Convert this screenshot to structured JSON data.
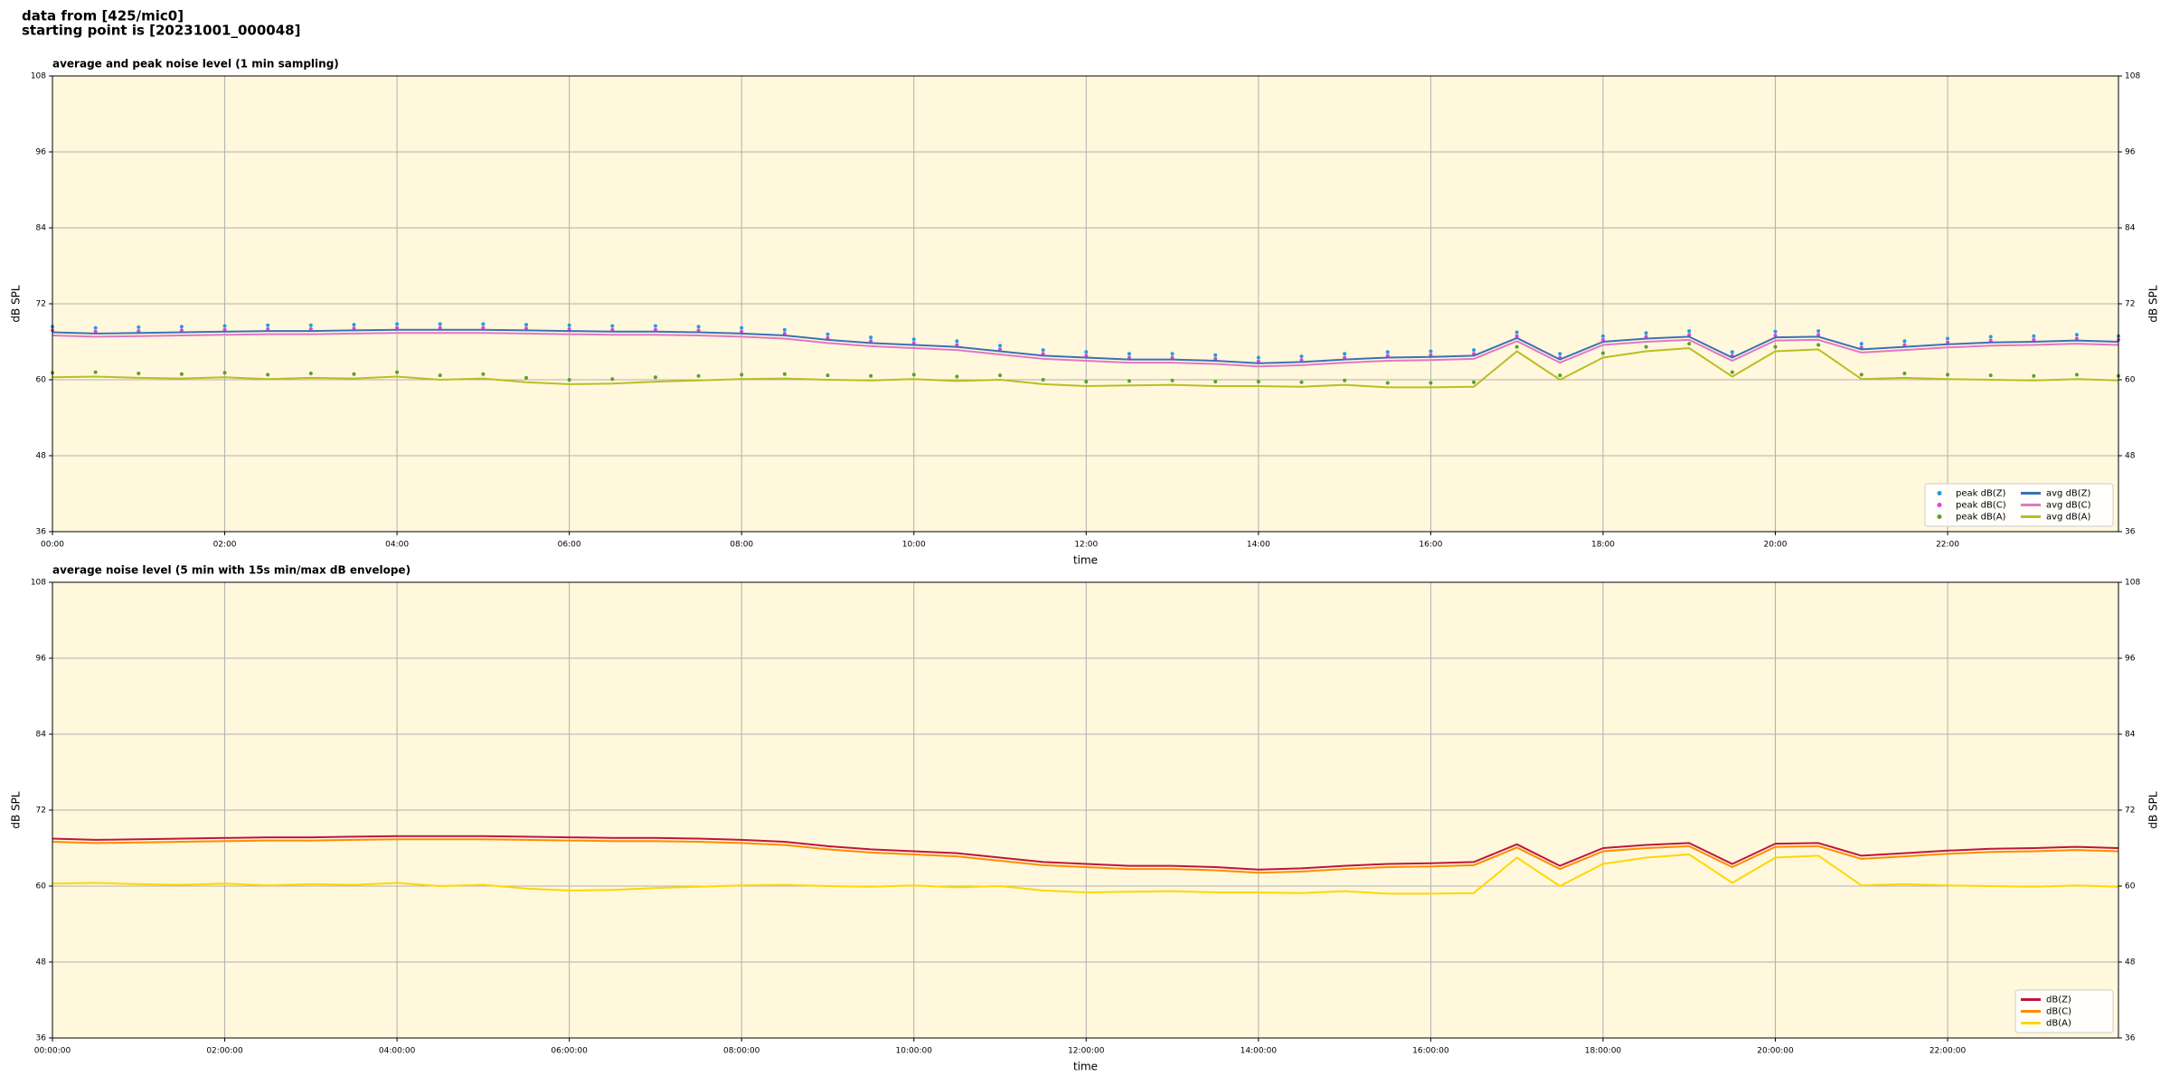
{
  "header": [
    "data from [425/mic0]",
    "starting point is [20231001_000048]"
  ],
  "chart_data": [
    {
      "type": "line",
      "title": "average and peak noise level (1 min sampling)",
      "xlabel": "time",
      "ylabel": "dB SPL",
      "x": [
        "00:00",
        "00:30",
        "01:00",
        "01:30",
        "02:00",
        "02:30",
        "03:00",
        "03:30",
        "04:00",
        "04:30",
        "05:00",
        "05:30",
        "06:00",
        "06:30",
        "07:00",
        "07:30",
        "08:00",
        "08:30",
        "09:00",
        "09:30",
        "10:00",
        "10:30",
        "11:00",
        "11:30",
        "12:00",
        "12:30",
        "13:00",
        "13:30",
        "14:00",
        "14:30",
        "15:00",
        "15:30",
        "16:00",
        "16:30",
        "17:00",
        "17:30",
        "18:00",
        "18:30",
        "19:00",
        "19:30",
        "20:00",
        "20:30",
        "21:00",
        "21:30",
        "22:00",
        "22:30",
        "23:00",
        "23:30",
        "23:59"
      ],
      "xlim": [
        "00:00",
        "23:59"
      ],
      "xticks": [
        "00:00",
        "02:00",
        "04:00",
        "06:00",
        "08:00",
        "10:00",
        "12:00",
        "14:00",
        "16:00",
        "18:00",
        "20:00",
        "22:00"
      ],
      "ylim": [
        36,
        108
      ],
      "yticks": [
        36,
        48,
        60,
        72,
        84,
        96,
        108
      ],
      "grid": true,
      "legend": "lower right",
      "series": [
        {
          "name": "peak dB(Z)",
          "mode": "markers",
          "color": "#1f9fdf",
          "values": [
            68.4,
            68.2,
            68.3,
            68.4,
            68.5,
            68.6,
            68.6,
            68.7,
            68.8,
            68.8,
            68.8,
            68.7,
            68.6,
            68.5,
            68.5,
            68.4,
            68.2,
            67.9,
            67.2,
            66.7,
            66.4,
            66.1,
            65.4,
            64.7,
            64.4,
            64.1,
            64.1,
            63.9,
            63.5,
            63.7,
            64.1,
            64.4,
            64.5,
            64.7,
            67.5,
            64.1,
            66.9,
            67.4,
            67.7,
            64.4,
            67.6,
            67.7,
            65.7,
            66.1,
            66.5,
            66.8,
            66.9,
            67.1,
            66.9
          ]
        },
        {
          "name": "peak dB(C)",
          "mode": "markers",
          "color": "#e040e0",
          "values": [
            67.8,
            67.6,
            67.7,
            67.8,
            67.9,
            68.0,
            68.0,
            68.1,
            68.2,
            68.2,
            68.2,
            68.1,
            68.0,
            67.9,
            67.9,
            67.8,
            67.6,
            67.3,
            66.6,
            66.1,
            65.8,
            65.5,
            64.8,
            64.1,
            63.8,
            63.5,
            63.5,
            63.3,
            62.9,
            63.1,
            63.5,
            63.8,
            63.9,
            64.1,
            66.9,
            63.5,
            66.3,
            66.8,
            67.1,
            63.8,
            67.0,
            67.1,
            65.1,
            65.5,
            65.9,
            66.2,
            66.3,
            66.5,
            66.3
          ]
        },
        {
          "name": "peak dB(A)",
          "mode": "markers",
          "color": "#5aa02c",
          "values": [
            61.1,
            61.2,
            61.0,
            60.9,
            61.1,
            60.8,
            61.0,
            60.9,
            61.2,
            60.7,
            60.9,
            60.3,
            60.0,
            60.1,
            60.4,
            60.6,
            60.8,
            60.9,
            60.7,
            60.6,
            60.8,
            60.5,
            60.7,
            60.0,
            59.7,
            59.8,
            59.9,
            59.7,
            59.7,
            59.6,
            59.9,
            59.5,
            59.5,
            59.6,
            65.2,
            60.7,
            64.2,
            65.2,
            65.7,
            61.2,
            65.2,
            65.5,
            60.8,
            61.0,
            60.8,
            60.7,
            60.6,
            60.8,
            60.6
          ]
        },
        {
          "name": "avg dB(Z)",
          "mode": "lines",
          "color": "#3d6fb8",
          "values": [
            67.5,
            67.3,
            67.4,
            67.5,
            67.6,
            67.7,
            67.7,
            67.8,
            67.9,
            67.9,
            67.9,
            67.8,
            67.7,
            67.6,
            67.6,
            67.5,
            67.3,
            67.0,
            66.3,
            65.8,
            65.5,
            65.2,
            64.5,
            63.8,
            63.5,
            63.2,
            63.2,
            63.0,
            62.6,
            62.8,
            63.2,
            63.5,
            63.6,
            63.8,
            66.6,
            63.2,
            66.0,
            66.5,
            66.8,
            63.5,
            66.7,
            66.8,
            64.8,
            65.2,
            65.6,
            65.9,
            66.0,
            66.2,
            66.0
          ]
        },
        {
          "name": "avg dB(C)",
          "mode": "lines",
          "color": "#e377c2",
          "values": [
            67.0,
            66.8,
            66.9,
            67.0,
            67.1,
            67.2,
            67.2,
            67.3,
            67.4,
            67.4,
            67.4,
            67.3,
            67.2,
            67.1,
            67.1,
            67.0,
            66.8,
            66.5,
            65.8,
            65.3,
            65.0,
            64.7,
            64.0,
            63.3,
            63.0,
            62.7,
            62.7,
            62.5,
            62.1,
            62.3,
            62.7,
            63.0,
            63.1,
            63.3,
            66.1,
            62.7,
            65.5,
            66.0,
            66.3,
            63.0,
            66.2,
            66.3,
            64.3,
            64.7,
            65.1,
            65.4,
            65.5,
            65.7,
            65.5
          ]
        },
        {
          "name": "avg dB(A)",
          "mode": "lines",
          "color": "#bcbd22",
          "values": [
            60.4,
            60.5,
            60.3,
            60.2,
            60.4,
            60.1,
            60.3,
            60.2,
            60.5,
            60.0,
            60.2,
            59.6,
            59.3,
            59.4,
            59.7,
            59.9,
            60.1,
            60.2,
            60.0,
            59.9,
            60.1,
            59.8,
            60.0,
            59.3,
            59.0,
            59.1,
            59.2,
            59.0,
            59.0,
            58.9,
            59.2,
            58.8,
            58.8,
            58.9,
            64.5,
            60.0,
            63.5,
            64.5,
            65.0,
            60.5,
            64.5,
            64.8,
            60.1,
            60.3,
            60.1,
            60.0,
            59.9,
            60.1,
            59.9
          ]
        }
      ]
    },
    {
      "type": "line",
      "title": "average noise level (5 min with 15s min/max dB envelope)",
      "xlabel": "time",
      "ylabel": "dB SPL",
      "x": [
        "00:00:00",
        "00:30:00",
        "01:00:00",
        "01:30:00",
        "02:00:00",
        "02:30:00",
        "03:00:00",
        "03:30:00",
        "04:00:00",
        "04:30:00",
        "05:00:00",
        "05:30:00",
        "06:00:00",
        "06:30:00",
        "07:00:00",
        "07:30:00",
        "08:00:00",
        "08:30:00",
        "09:00:00",
        "09:30:00",
        "10:00:00",
        "10:30:00",
        "11:00:00",
        "11:30:00",
        "12:00:00",
        "12:30:00",
        "13:00:00",
        "13:30:00",
        "14:00:00",
        "14:30:00",
        "15:00:00",
        "15:30:00",
        "16:00:00",
        "16:30:00",
        "17:00:00",
        "17:30:00",
        "18:00:00",
        "18:30:00",
        "19:00:00",
        "19:30:00",
        "20:00:00",
        "20:30:00",
        "21:00:00",
        "21:30:00",
        "22:00:00",
        "22:30:00",
        "23:00:00",
        "23:30:00",
        "23:59:00"
      ],
      "xlim": [
        "00:00:00",
        "23:59:00"
      ],
      "xticks": [
        "00:00:00",
        "02:00:00",
        "04:00:00",
        "06:00:00",
        "08:00:00",
        "10:00:00",
        "12:00:00",
        "14:00:00",
        "16:00:00",
        "18:00:00",
        "20:00:00",
        "22:00:00"
      ],
      "ylim": [
        36,
        108
      ],
      "yticks": [
        36,
        48,
        60,
        72,
        84,
        96,
        108
      ],
      "grid": true,
      "legend": "lower right",
      "series": [
        {
          "name": "dB(Z)",
          "mode": "lines",
          "color": "#c0143c",
          "values": [
            67.5,
            67.3,
            67.4,
            67.5,
            67.6,
            67.7,
            67.7,
            67.8,
            67.9,
            67.9,
            67.9,
            67.8,
            67.7,
            67.6,
            67.6,
            67.5,
            67.3,
            67.0,
            66.3,
            65.8,
            65.5,
            65.2,
            64.5,
            63.8,
            63.5,
            63.2,
            63.2,
            63.0,
            62.6,
            62.8,
            63.2,
            63.5,
            63.6,
            63.8,
            66.6,
            63.2,
            66.0,
            66.5,
            66.8,
            63.5,
            66.7,
            66.8,
            64.8,
            65.2,
            65.6,
            65.9,
            66.0,
            66.2,
            66.0
          ]
        },
        {
          "name": "dB(C)",
          "mode": "lines",
          "color": "#ff8c00",
          "values": [
            67.0,
            66.8,
            66.9,
            67.0,
            67.1,
            67.2,
            67.2,
            67.3,
            67.4,
            67.4,
            67.4,
            67.3,
            67.2,
            67.1,
            67.1,
            67.0,
            66.8,
            66.5,
            65.8,
            65.3,
            65.0,
            64.7,
            64.0,
            63.3,
            63.0,
            62.7,
            62.7,
            62.5,
            62.1,
            62.3,
            62.7,
            63.0,
            63.1,
            63.3,
            66.1,
            62.7,
            65.5,
            66.0,
            66.3,
            63.0,
            66.2,
            66.3,
            64.3,
            64.7,
            65.1,
            65.4,
            65.5,
            65.7,
            65.5
          ]
        },
        {
          "name": "dB(A)",
          "mode": "lines",
          "color": "#ffd700",
          "values": [
            60.4,
            60.5,
            60.3,
            60.2,
            60.4,
            60.1,
            60.3,
            60.2,
            60.5,
            60.0,
            60.2,
            59.6,
            59.3,
            59.4,
            59.7,
            59.9,
            60.1,
            60.2,
            60.0,
            59.9,
            60.1,
            59.8,
            60.0,
            59.3,
            59.0,
            59.1,
            59.2,
            59.0,
            59.0,
            58.9,
            59.2,
            58.8,
            58.8,
            58.9,
            64.5,
            60.0,
            63.5,
            64.5,
            65.0,
            60.5,
            64.5,
            64.8,
            60.1,
            60.3,
            60.1,
            60.0,
            59.9,
            60.1,
            59.9
          ]
        }
      ]
    }
  ]
}
